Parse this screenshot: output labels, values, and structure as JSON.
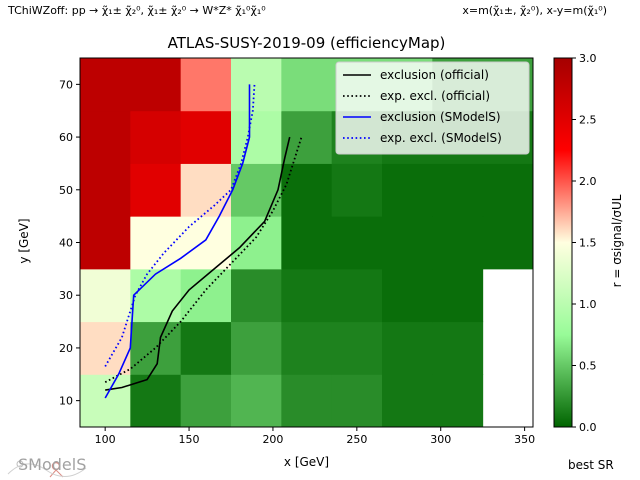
{
  "header": {
    "left_label": "TChiWZoff: pp → χ̃₁± χ̃₂⁰, χ̃₁± χ̃₂⁰ → W*Z* χ̃₁⁰χ̃₁⁰",
    "right_label": "x=m(χ̃₁±, χ̃₂⁰), x-y=m(χ̃₁⁰)"
  },
  "footer": {
    "best_sr": "best SR",
    "logo_text": "SModelS"
  },
  "chart_data": {
    "type": "heatmap",
    "title": "ATLAS-SUSY-2019-09 (efficiencyMap)",
    "xlabel": "x [GeV]",
    "ylabel": "y [GeV]",
    "colorbar_label": "r = σsignal/σUL",
    "xlim": [
      85,
      355
    ],
    "ylim": [
      5,
      75
    ],
    "xticks": [
      100,
      150,
      200,
      250,
      300,
      350
    ],
    "yticks": [
      10,
      20,
      30,
      40,
      50,
      60,
      70
    ],
    "colorbar": {
      "range": [
        0,
        3
      ],
      "ticks": [
        0.0,
        0.5,
        1.0,
        1.5,
        2.0,
        2.5,
        3.0
      ],
      "colors": [
        "#006400",
        "#98fb98",
        "#ffffe0",
        "#ff0000",
        "#a50000"
      ]
    },
    "cell_x_edges": [
      85,
      115,
      145,
      175,
      205,
      235,
      265,
      295,
      325,
      355
    ],
    "cell_y_edges": [
      5,
      15,
      25,
      35,
      45,
      55,
      65,
      75
    ],
    "cells": [
      [
        1.1,
        0.1,
        0.3,
        0.4,
        0.2,
        0.2,
        0.1,
        0.1,
        null
      ],
      [
        1.6,
        0.3,
        0.1,
        0.3,
        0.15,
        0.15,
        0.1,
        0.1,
        null
      ],
      [
        1.4,
        0.9,
        0.7,
        0.2,
        0.1,
        0.1,
        0.05,
        0.05,
        null
      ],
      [
        2.8,
        1.5,
        1.5,
        0.7,
        0.05,
        0.05,
        0.05,
        0.05,
        0.05
      ],
      [
        2.8,
        2.5,
        1.6,
        0.5,
        0.05,
        0.1,
        0.05,
        0.05,
        0.05
      ],
      [
        2.8,
        2.6,
        2.5,
        0.9,
        0.3,
        0.15,
        0.1,
        0.1,
        0.1
      ],
      [
        2.8,
        2.8,
        1.9,
        1.0,
        0.6,
        0.6,
        0.6,
        0.3,
        0.3
      ]
    ],
    "legend": {
      "placement": "top-right",
      "entries": [
        {
          "label": "exclusion (official)",
          "color": "#000000",
          "style": "solid"
        },
        {
          "label": "exp. excl. (official)",
          "color": "#000000",
          "style": "dotted"
        },
        {
          "label": "exclusion (SModelS)",
          "color": "#0000ff",
          "style": "solid"
        },
        {
          "label": "exp. excl. (SModelS)",
          "color": "#0000ff",
          "style": "dotted"
        }
      ]
    },
    "series": [
      {
        "name": "exclusion (official)",
        "color": "#000000",
        "style": "solid",
        "x": [
          100,
          110,
          125,
          131,
          133,
          140,
          150,
          165,
          180,
          195,
          203,
          207,
          210
        ],
        "y": [
          12,
          12.5,
          14,
          17,
          22,
          27,
          31,
          35,
          39,
          44,
          50,
          56,
          60
        ]
      },
      {
        "name": "exp. excl. (official)",
        "color": "#000000",
        "style": "dotted",
        "x": [
          100,
          115,
          130,
          145,
          160,
          175,
          190,
          200,
          208,
          213,
          217
        ],
        "y": [
          13.5,
          16,
          20,
          25,
          31,
          36,
          41,
          46,
          51,
          56,
          60
        ]
      },
      {
        "name": "exclusion (SModelS)",
        "color": "#0000ff",
        "style": "solid",
        "x": [
          100,
          108,
          115,
          117,
          130,
          145,
          160,
          168,
          176,
          182,
          186,
          186
        ],
        "y": [
          10.5,
          15,
          20,
          30,
          34,
          37,
          40.5,
          45,
          50,
          55,
          60,
          70
        ]
      },
      {
        "name": "exp. excl. (SModelS)",
        "color": "#0000ff",
        "style": "dotted",
        "x": [
          100,
          110,
          118,
          125,
          135,
          150,
          165,
          175,
          181,
          185,
          188,
          189
        ],
        "y": [
          16.5,
          22,
          30,
          34,
          38,
          43,
          47,
          50,
          55,
          60,
          65,
          70
        ]
      }
    ]
  }
}
